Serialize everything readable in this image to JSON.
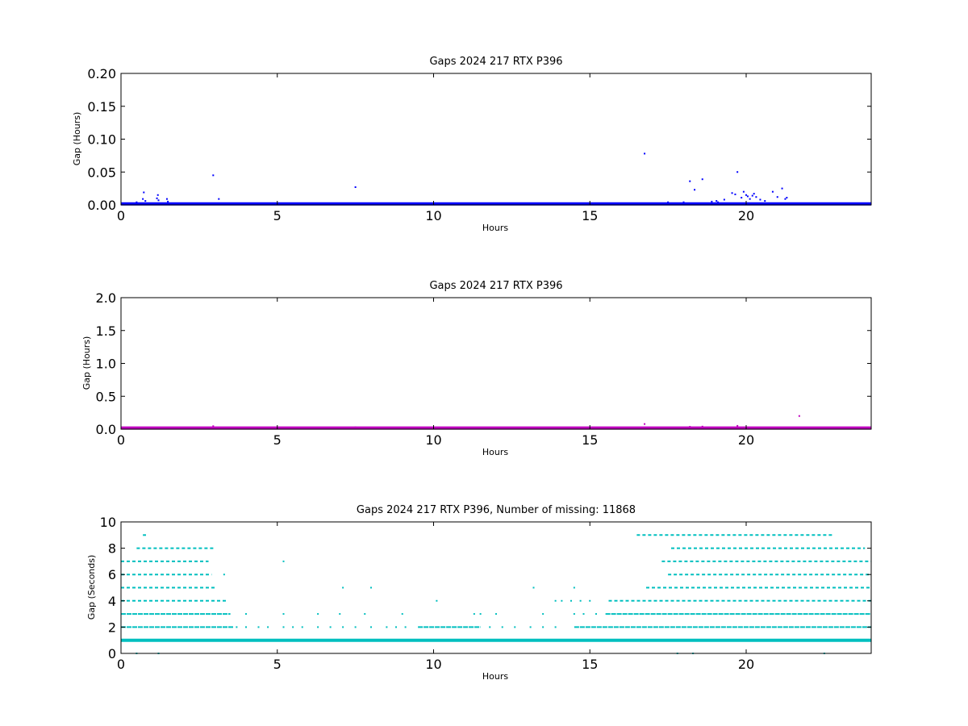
{
  "chart_data": [
    {
      "type": "scatter",
      "title": "Gaps 2024 217 RTX  P396",
      "xlabel": "Hours",
      "ylabel": "Gap (Hours)",
      "xlim": [
        0,
        24
      ],
      "ylim": [
        0,
        0.2
      ],
      "xticks": [
        0,
        5,
        10,
        15,
        20
      ],
      "xtick_labels": [
        "0",
        "5",
        "10",
        "15",
        "20"
      ],
      "yticks": [
        0,
        0.05,
        0.1,
        0.15,
        0.2
      ],
      "ytick_labels": [
        "0.00",
        "0.05",
        "0.10",
        "0.15",
        "0.20"
      ],
      "color": "#0000ff",
      "grid": false,
      "baseline": {
        "y": 0.0003,
        "x_range": [
          0,
          24
        ],
        "density": "continuous"
      },
      "series": [
        {
          "values": [
            [
              0.73,
              0.019
            ],
            [
              0.7,
              0.009
            ],
            [
              0.78,
              0.006
            ],
            [
              1.18,
              0.015
            ],
            [
              1.15,
              0.01
            ],
            [
              1.2,
              0.007
            ],
            [
              1.47,
              0.009
            ],
            [
              1.5,
              0.005
            ],
            [
              2.95,
              0.045
            ],
            [
              3.13,
              0.009
            ],
            [
              7.5,
              0.027
            ],
            [
              16.75,
              0.078
            ],
            [
              18.2,
              0.036
            ],
            [
              18.35,
              0.023
            ],
            [
              18.6,
              0.039
            ],
            [
              19.05,
              0.006
            ],
            [
              19.3,
              0.008
            ],
            [
              19.55,
              0.018
            ],
            [
              19.65,
              0.016
            ],
            [
              19.72,
              0.05
            ],
            [
              19.85,
              0.011
            ],
            [
              19.92,
              0.02
            ],
            [
              20.0,
              0.015
            ],
            [
              20.05,
              0.013
            ],
            [
              20.12,
              0.009
            ],
            [
              20.2,
              0.014
            ],
            [
              20.25,
              0.017
            ],
            [
              20.32,
              0.012
            ],
            [
              20.45,
              0.008
            ],
            [
              20.6,
              0.006
            ],
            [
              20.85,
              0.02
            ],
            [
              21.0,
              0.012
            ],
            [
              21.15,
              0.025
            ],
            [
              21.25,
              0.009
            ],
            [
              21.3,
              0.011
            ],
            [
              18.9,
              0.005
            ],
            [
              19.1,
              0.004
            ],
            [
              17.5,
              0.004
            ],
            [
              18.0,
              0.004
            ],
            [
              0.5,
              0.004
            ]
          ]
        }
      ]
    },
    {
      "type": "scatter",
      "title": "Gaps 2024 217 RTX  P396",
      "xlabel": "Hours",
      "ylabel": "Gap (Hours)",
      "xlim": [
        0,
        24
      ],
      "ylim": [
        0,
        2.0
      ],
      "xticks": [
        0,
        5,
        10,
        15,
        20
      ],
      "xtick_labels": [
        "0",
        "5",
        "10",
        "15",
        "20"
      ],
      "yticks": [
        0,
        0.5,
        1.0,
        1.5,
        2.0
      ],
      "ytick_labels": [
        "0.0",
        "0.5",
        "1.0",
        "1.5",
        "2.0"
      ],
      "color": "#bf00bf",
      "grid": false,
      "baseline": {
        "y": 0.005,
        "x_range": [
          0,
          24
        ],
        "density": "continuous"
      },
      "series": [
        {
          "values": [
            [
              2.95,
              0.045
            ],
            [
              7.5,
              0.027
            ],
            [
              16.75,
              0.078
            ],
            [
              18.2,
              0.036
            ],
            [
              18.6,
              0.039
            ],
            [
              19.72,
              0.05
            ],
            [
              21.7,
              0.2
            ]
          ]
        }
      ]
    },
    {
      "type": "scatter",
      "title": "Gaps 2024 217 RTX  P396, Number of missing: 11868",
      "xlabel": "Hours",
      "ylabel": "Gap (Seconds)",
      "xlim": [
        0,
        24
      ],
      "ylim": [
        0,
        10
      ],
      "xticks": [
        0,
        5,
        10,
        15,
        20
      ],
      "xtick_labels": [
        "0",
        "5",
        "10",
        "15",
        "20"
      ],
      "yticks": [
        0,
        2,
        4,
        6,
        8,
        10
      ],
      "ytick_labels": [
        "0",
        "2",
        "4",
        "6",
        "8",
        "10"
      ],
      "color": "#00bfbf",
      "grid": false,
      "level_ranges": [
        {
          "gap": 1,
          "segments": [
            [
              0,
              24
            ]
          ]
        },
        {
          "gap": 2,
          "segments": [
            [
              0,
              3.6
            ],
            [
              9.5,
              11.5
            ],
            [
              14.5,
              24
            ]
          ]
        },
        {
          "gap": 3,
          "segments": [
            [
              0,
              3.5
            ],
            [
              15.5,
              24
            ]
          ]
        },
        {
          "gap": 4,
          "segments": [
            [
              0,
              3.4
            ],
            [
              15.6,
              24
            ]
          ]
        },
        {
          "gap": 5,
          "segments": [
            [
              0,
              3.0
            ],
            [
              16.8,
              24
            ]
          ]
        },
        {
          "gap": 6,
          "segments": [
            [
              0,
              2.9
            ],
            [
              17.5,
              24
            ]
          ]
        },
        {
          "gap": 7,
          "segments": [
            [
              0,
              2.8
            ],
            [
              17.3,
              24
            ]
          ]
        },
        {
          "gap": 8,
          "segments": [
            [
              0.5,
              3.0
            ],
            [
              17.6,
              23.8
            ]
          ]
        },
        {
          "gap": 9,
          "segments": [
            [
              0.7,
              0.8
            ],
            [
              16.5,
              22.8
            ]
          ]
        }
      ],
      "series": [
        {
          "values": [
            [
              0.5,
              0
            ],
            [
              1.2,
              0
            ],
            [
              17.8,
              0
            ],
            [
              18.3,
              0
            ],
            [
              22.5,
              0
            ],
            [
              3.7,
              2
            ],
            [
              4.0,
              2
            ],
            [
              4.4,
              2
            ],
            [
              4.7,
              2
            ],
            [
              5.2,
              2
            ],
            [
              5.5,
              2
            ],
            [
              5.8,
              2
            ],
            [
              6.3,
              2
            ],
            [
              6.7,
              2
            ],
            [
              7.1,
              2
            ],
            [
              7.5,
              2
            ],
            [
              8.0,
              2
            ],
            [
              8.5,
              2
            ],
            [
              8.8,
              2
            ],
            [
              9.1,
              2
            ],
            [
              11.8,
              2
            ],
            [
              12.2,
              2
            ],
            [
              12.6,
              2
            ],
            [
              13.1,
              2
            ],
            [
              13.5,
              2
            ],
            [
              13.9,
              2
            ],
            [
              4.0,
              3
            ],
            [
              5.2,
              3
            ],
            [
              6.3,
              3
            ],
            [
              7.0,
              3
            ],
            [
              7.8,
              3
            ],
            [
              9.0,
              3
            ],
            [
              11.3,
              3
            ],
            [
              11.5,
              3
            ],
            [
              12.0,
              3
            ],
            [
              13.5,
              3
            ],
            [
              14.5,
              3
            ],
            [
              14.8,
              3
            ],
            [
              15.2,
              3
            ],
            [
              3.3,
              6
            ],
            [
              5.2,
              7
            ],
            [
              7.1,
              5
            ],
            [
              8.0,
              5
            ],
            [
              10.1,
              4
            ],
            [
              13.2,
              5
            ],
            [
              14.5,
              5
            ],
            [
              13.9,
              4
            ],
            [
              14.1,
              4
            ],
            [
              14.4,
              4
            ],
            [
              14.7,
              4
            ],
            [
              15.0,
              4
            ]
          ]
        }
      ]
    }
  ]
}
